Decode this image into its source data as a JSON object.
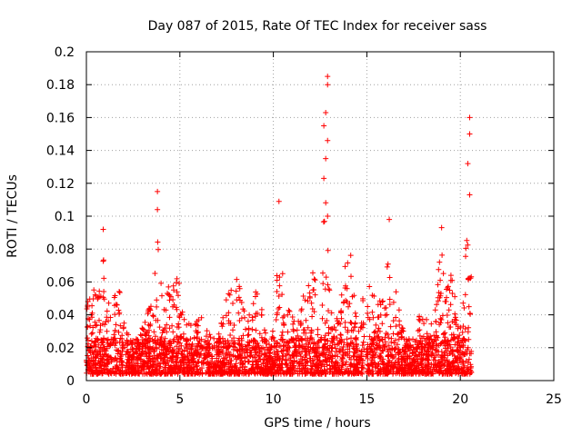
{
  "chart_data": {
    "type": "scatter",
    "title": "Day 087 of 2015, Rate Of TEC Index for receiver sass",
    "xlabel": "GPS time / hours",
    "ylabel": "ROTI / TECUs",
    "xlim": [
      0,
      25
    ],
    "ylim": [
      0,
      0.2
    ],
    "x_ticks": [
      "0",
      "5",
      "10",
      "15",
      "20",
      "25"
    ],
    "y_ticks": [
      "0",
      "0.02",
      "0.04",
      "0.06",
      "0.08",
      "0.1",
      "0.12",
      "0.14",
      "0.16",
      "0.18",
      "0.2"
    ],
    "grid": true,
    "marker": "+",
    "color": "#ff0000",
    "time_range": [
      0,
      20.6
    ],
    "notable_points": [
      {
        "x": 0.9,
        "y": 0.092
      },
      {
        "x": 3.8,
        "y": 0.115
      },
      {
        "x": 3.8,
        "y": 0.104
      },
      {
        "x": 10.3,
        "y": 0.109
      },
      {
        "x": 12.9,
        "y": 0.185
      },
      {
        "x": 12.9,
        "y": 0.18
      },
      {
        "x": 12.8,
        "y": 0.163
      },
      {
        "x": 12.7,
        "y": 0.155
      },
      {
        "x": 12.9,
        "y": 0.146
      },
      {
        "x": 12.8,
        "y": 0.135
      },
      {
        "x": 12.7,
        "y": 0.123
      },
      {
        "x": 12.9,
        "y": 0.1
      },
      {
        "x": 16.2,
        "y": 0.098
      },
      {
        "x": 19.0,
        "y": 0.093
      },
      {
        "x": 20.5,
        "y": 0.16
      },
      {
        "x": 20.5,
        "y": 0.15
      },
      {
        "x": 20.4,
        "y": 0.132
      },
      {
        "x": 20.5,
        "y": 0.113
      }
    ]
  }
}
